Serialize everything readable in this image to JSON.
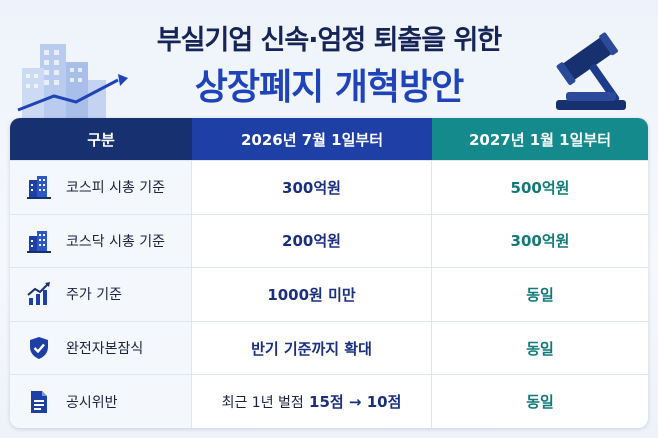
{
  "title": {
    "line1": "부실기업 신속·엄정 퇴출을 위한",
    "line2": "상장폐지 개혁방안"
  },
  "colors": {
    "navy": "#17306f",
    "blue": "#1d3fa6",
    "teal": "#148a8d"
  },
  "table": {
    "headers": [
      "구분",
      "2026년 7월 1일부터",
      "2027년 1월 1일부터"
    ],
    "rows": [
      {
        "icon": "building-icon",
        "label": "코스피 시총 기준",
        "v1": "300억원",
        "v2": "500억원"
      },
      {
        "icon": "building-icon",
        "label": "코스닥 시총 기준",
        "v1": "200억원",
        "v2": "300억원"
      },
      {
        "icon": "rising-chart-icon",
        "label": "주가 기준",
        "v1": "1000원 미만",
        "v2": "동일"
      },
      {
        "icon": "shield-check-icon",
        "label": "완전자본잠식",
        "v1": "반기 기준까지 확대",
        "v2": "동일"
      },
      {
        "icon": "document-icon",
        "label": "공시위반",
        "v1_prefix": "최근 1년 벌점",
        "v1": "15점 → 10점",
        "v2": "동일"
      }
    ]
  }
}
